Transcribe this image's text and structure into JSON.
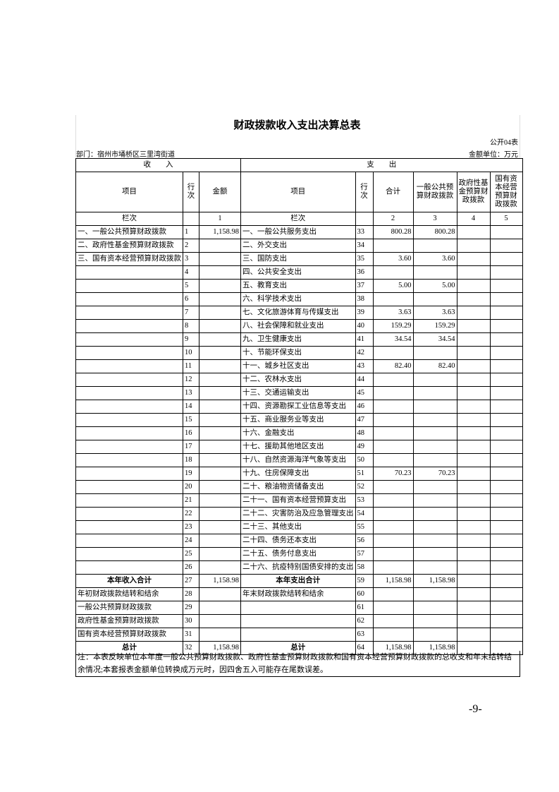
{
  "title": "财政拨款收入支出决算总表",
  "form_no": "公开04表",
  "department": "部门：宿州市埇桥区三里湾街道",
  "unit": "金额单位：万元",
  "headers": {
    "income": "收　　入",
    "expenditure": "支　　出",
    "item": "项目",
    "line_no": "行次",
    "amount": "金额",
    "item2": "项目",
    "line_no2": "行次",
    "total": "合计",
    "general": "一般公共预算财政拨款",
    "fund": "政府性基金预算财政拨款",
    "state": "国有资本经营预算财政拨款"
  },
  "column_row": [
    "栏次",
    null,
    "1",
    "栏次",
    null,
    "2",
    "3",
    "4",
    "5"
  ],
  "rows": [
    [
      "一、一般公共预算财政拨款",
      "1",
      "1,158.98",
      "一、一般公共服务支出",
      "33",
      "800.28",
      "800.28",
      null,
      null
    ],
    [
      "二、政府性基金预算财政拨款",
      "2",
      null,
      "二、外交支出",
      "34",
      null,
      null,
      null,
      null
    ],
    [
      "三、国有资本经营预算财政拨款",
      "3",
      null,
      "三、国防支出",
      "35",
      "3.60",
      "3.60",
      null,
      null
    ],
    [
      null,
      "4",
      null,
      "四、公共安全支出",
      "36",
      null,
      null,
      null,
      null
    ],
    [
      null,
      "5",
      null,
      "五、教育支出",
      "37",
      "5.00",
      "5.00",
      null,
      null
    ],
    [
      null,
      "6",
      null,
      "六、科学技术支出",
      "38",
      null,
      null,
      null,
      null
    ],
    [
      null,
      "7",
      null,
      "七、文化旅游体育与传媒支出",
      "39",
      "3.63",
      "3.63",
      null,
      null
    ],
    [
      null,
      "8",
      null,
      "八、社会保障和就业支出",
      "40",
      "159.29",
      "159.29",
      null,
      null
    ],
    [
      null,
      "9",
      null,
      "九、卫生健康支出",
      "41",
      "34.54",
      "34.54",
      null,
      null
    ],
    [
      null,
      "10",
      null,
      "十、节能环保支出",
      "42",
      null,
      null,
      null,
      null
    ],
    [
      null,
      "11",
      null,
      "十一、城乡社区支出",
      "43",
      "82.40",
      "82.40",
      null,
      null
    ],
    [
      null,
      "12",
      null,
      "十二、农林水支出",
      "44",
      null,
      null,
      null,
      null
    ],
    [
      null,
      "13",
      null,
      "十三、交通运输支出",
      "45",
      null,
      null,
      null,
      null
    ],
    [
      null,
      "14",
      null,
      "十四、资源勘探工业信息等支出",
      "46",
      null,
      null,
      null,
      null
    ],
    [
      null,
      "15",
      null,
      "十五、商业服务业等支出",
      "47",
      null,
      null,
      null,
      null
    ],
    [
      null,
      "16",
      null,
      "十六、金融支出",
      "48",
      null,
      null,
      null,
      null
    ],
    [
      null,
      "17",
      null,
      "十七、援助其他地区支出",
      "49",
      null,
      null,
      null,
      null
    ],
    [
      null,
      "18",
      null,
      "十八、自然资源海洋气象等支出",
      "50",
      null,
      null,
      null,
      null
    ],
    [
      null,
      "19",
      null,
      "十九、住房保障支出",
      "51",
      "70.23",
      "70.23",
      null,
      null
    ],
    [
      null,
      "20",
      null,
      "二十、粮油物资储备支出",
      "52",
      null,
      null,
      null,
      null
    ],
    [
      null,
      "21",
      null,
      "二十一、国有资本经营预算支出",
      "53",
      null,
      null,
      null,
      null
    ],
    [
      null,
      "22",
      null,
      "二十二、灾害防治及应急管理支出",
      "54",
      null,
      null,
      null,
      null
    ],
    [
      null,
      "23",
      null,
      "二十三、其他支出",
      "55",
      null,
      null,
      null,
      null
    ],
    [
      null,
      "24",
      null,
      "二十四、债务还本支出",
      "56",
      null,
      null,
      null,
      null
    ],
    [
      null,
      "25",
      null,
      "二十五、债务付息支出",
      "57",
      null,
      null,
      null,
      null
    ],
    [
      null,
      "26",
      null,
      "二十六、抗疫特别国债安排的支出",
      "58",
      null,
      null,
      null,
      null
    ]
  ],
  "subtotal": [
    "本年收入合计",
    "27",
    "1,158.98",
    "本年支出合计",
    "59",
    "1,158.98",
    "1,158.98",
    null,
    null
  ],
  "balance_rows": [
    [
      "年初财政拨款结转和结余",
      "28",
      null,
      "年末财政拨款结转和结余",
      "60",
      null,
      null,
      null,
      null
    ],
    [
      "一般公共预算财政拨款",
      "29",
      null,
      null,
      "61",
      null,
      null,
      null,
      null
    ],
    [
      "政府性基金预算财政拨款",
      "30",
      null,
      null,
      "62",
      null,
      null,
      null,
      null
    ],
    [
      "国有资本经营预算财政拨款",
      "31",
      null,
      null,
      "63",
      null,
      null,
      null,
      null
    ]
  ],
  "total": [
    "总计",
    "32",
    "1,158.98",
    "总计",
    "64",
    "1,158.98",
    "1,158.98",
    null,
    null
  ],
  "note": "注：本表反映单位本年度一般公共预算财政拨款、政府性基金预算财政拨款和国有资本经营预算财政拨款的总收支和年末结转结余情况;本套报表金额单位转换成万元时，因四舍五入可能存在尾数误差。",
  "page_number": "-9-"
}
